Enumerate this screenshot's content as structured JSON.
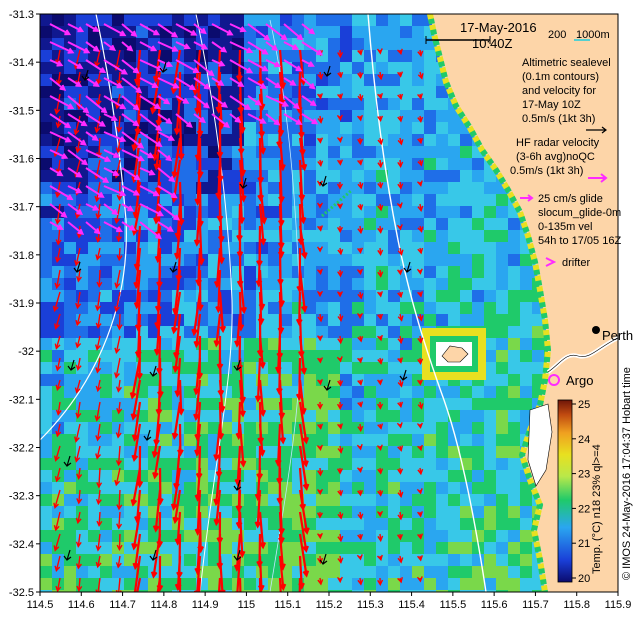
{
  "title": {
    "date": "17-May-2016",
    "time": "10:40Z"
  },
  "scale_bar": {
    "label_a": "200",
    "label_b": "1000m"
  },
  "axes": {
    "lon_ticks": [
      "114.5",
      "114.6",
      "114.7",
      "114.8",
      "114.9",
      "115",
      "115.1",
      "115.2",
      "115.3",
      "115.4",
      "115.5",
      "115.6",
      "115.7",
      "115.8",
      "115.9"
    ],
    "lat_ticks": [
      "-31.3",
      "-31.4",
      "-31.5",
      "-31.6",
      "-31.7",
      "-31.8",
      "-31.9",
      "-32",
      "-32.1",
      "-32.2",
      "-32.3",
      "-32.4",
      "-32.5"
    ],
    "lon_range": [
      114.5,
      115.9
    ],
    "lat_range": [
      -32.5,
      -31.3
    ]
  },
  "legend": {
    "altimetry": [
      "Altimetric sealevel",
      "(0.1m contours)",
      "and velocity for",
      "17-May 10Z",
      "0.5m/s (1kt 3h)"
    ],
    "hf_radar": [
      "HF radar velocity",
      "(3-6h avg)noQC",
      "0.5m/s (1kt 3h)"
    ],
    "glider": [
      "25 cm/s glide",
      "slocum_glide-0m",
      "0-135m vel",
      "54h to 17/05 16Z"
    ],
    "drifter": "drifter",
    "argo": "Argo"
  },
  "place": {
    "city": "Perth"
  },
  "colorbar": {
    "ticks": [
      "25",
      "24",
      "23",
      "22",
      "21",
      "20"
    ],
    "label": "Temp. (°C) n18 23% ql>=4",
    "colors": [
      "#0b0b6e",
      "#1a3fd8",
      "#2aa6f0",
      "#1fca6a",
      "#b9e84a",
      "#e8e020",
      "#f0a020",
      "#c04a10",
      "#6e1608"
    ]
  },
  "credit": "© IMOS 24-May-2016 17:04:37 Hobart time",
  "colors": {
    "land": "#fdd5a8",
    "altimetry_arrow": "#ff0000",
    "hf_radar_arrow": "#ff2bff",
    "drifter": "#ff2bff",
    "argo": "#ff2bff",
    "contour": "#ffffff"
  }
}
